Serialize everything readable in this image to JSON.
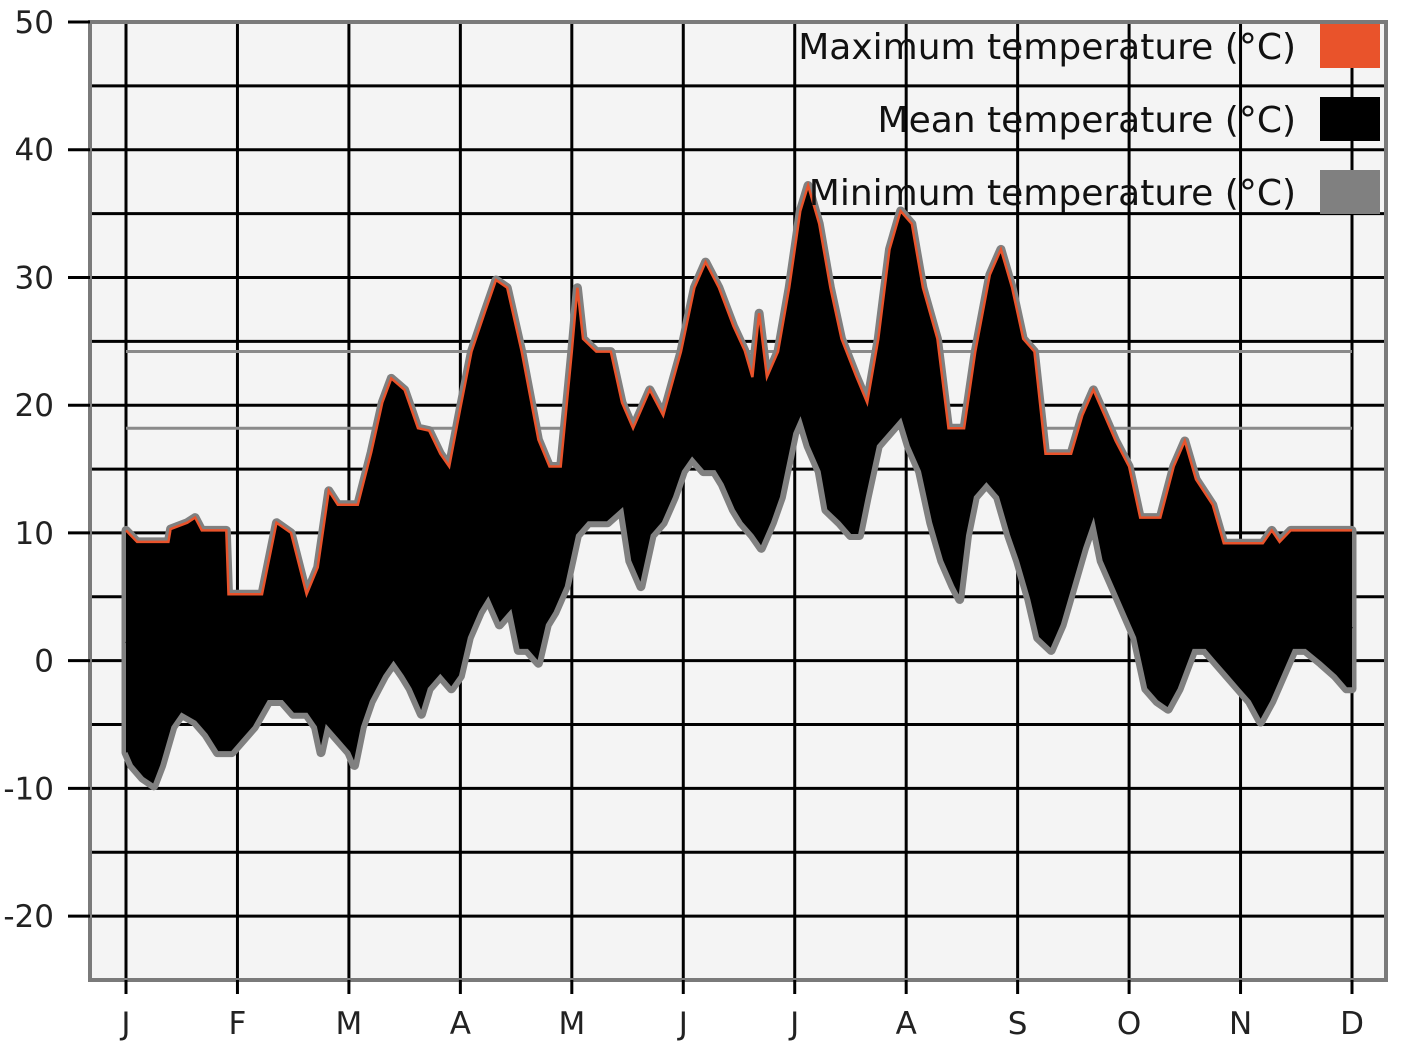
{
  "chart_data": {
    "type": "area",
    "title": "",
    "xlabel": "",
    "ylabel": "",
    "ylim": [
      -25,
      50
    ],
    "yticks": [
      50,
      40,
      30,
      20,
      10,
      0,
      -10,
      -20
    ],
    "xticks": [
      "J",
      "F",
      "M",
      "A",
      "M",
      "J",
      "J",
      "A",
      "S",
      "O",
      "N",
      "D"
    ],
    "xlim": [
      0,
      11
    ],
    "grid": true,
    "legend_position": "top-right",
    "reference_lines": [
      24.2,
      18.2
    ],
    "colors": {
      "background": "#f4f4f4",
      "grid": "#000000",
      "max": "#e9532b",
      "mean": "#000000",
      "min": "#808080",
      "reference": "#8a8a8a"
    },
    "series": [
      {
        "name": "Maximum temperature (°C)",
        "color": "#e9532b",
        "points": [
          [
            0.0,
            10.2
          ],
          [
            0.1,
            9.3
          ],
          [
            0.38,
            9.3
          ],
          [
            0.4,
            10.3
          ],
          [
            0.55,
            10.8
          ],
          [
            0.62,
            11.2
          ],
          [
            0.68,
            10.2
          ],
          [
            0.9,
            10.2
          ],
          [
            0.92,
            5.2
          ],
          [
            1.22,
            5.2
          ],
          [
            1.35,
            10.8
          ],
          [
            1.48,
            10.0
          ],
          [
            1.62,
            5.2
          ],
          [
            1.72,
            7.3
          ],
          [
            1.82,
            13.3
          ],
          [
            1.9,
            12.2
          ],
          [
            2.08,
            12.2
          ],
          [
            2.2,
            16.3
          ],
          [
            2.3,
            20.2
          ],
          [
            2.38,
            22.1
          ],
          [
            2.5,
            21.2
          ],
          [
            2.62,
            18.2
          ],
          [
            2.72,
            18.0
          ],
          [
            2.82,
            16.2
          ],
          [
            2.9,
            15.2
          ],
          [
            3.0,
            19.8
          ],
          [
            3.1,
            24.2
          ],
          [
            3.22,
            27.3
          ],
          [
            3.32,
            29.8
          ],
          [
            3.42,
            29.2
          ],
          [
            3.55,
            24.2
          ],
          [
            3.7,
            17.3
          ],
          [
            3.8,
            15.2
          ],
          [
            3.9,
            15.2
          ],
          [
            4.0,
            24.2
          ],
          [
            4.05,
            29.2
          ],
          [
            4.1,
            25.2
          ],
          [
            4.22,
            24.2
          ],
          [
            4.35,
            24.2
          ],
          [
            4.45,
            20.2
          ],
          [
            4.55,
            18.2
          ],
          [
            4.7,
            21.2
          ],
          [
            4.82,
            19.2
          ],
          [
            4.98,
            24.2
          ],
          [
            5.1,
            29.2
          ],
          [
            5.2,
            31.2
          ],
          [
            5.32,
            29.2
          ],
          [
            5.45,
            26.2
          ],
          [
            5.55,
            24.3
          ],
          [
            5.62,
            22.2
          ],
          [
            5.68,
            27.2
          ],
          [
            5.75,
            22.2
          ],
          [
            5.85,
            24.2
          ],
          [
            5.95,
            29.2
          ],
          [
            6.05,
            35.2
          ],
          [
            6.12,
            37.2
          ],
          [
            6.22,
            34.2
          ],
          [
            6.32,
            29.2
          ],
          [
            6.42,
            25.2
          ],
          [
            6.55,
            22.3
          ],
          [
            6.65,
            20.2
          ],
          [
            6.75,
            25.2
          ],
          [
            6.85,
            32.2
          ],
          [
            6.95,
            35.2
          ],
          [
            7.05,
            34.2
          ],
          [
            7.15,
            29.2
          ],
          [
            7.28,
            25.2
          ],
          [
            7.38,
            18.2
          ],
          [
            7.52,
            18.2
          ],
          [
            7.62,
            24.2
          ],
          [
            7.75,
            30.2
          ],
          [
            7.85,
            32.2
          ],
          [
            7.95,
            29.2
          ],
          [
            8.05,
            25.2
          ],
          [
            8.15,
            24.2
          ],
          [
            8.25,
            16.2
          ],
          [
            8.35,
            16.2
          ],
          [
            8.48,
            16.2
          ],
          [
            8.58,
            19.2
          ],
          [
            8.68,
            21.2
          ],
          [
            8.78,
            19.2
          ],
          [
            8.88,
            17.2
          ],
          [
            9.0,
            15.2
          ],
          [
            9.1,
            11.2
          ],
          [
            9.28,
            11.2
          ],
          [
            9.4,
            15.2
          ],
          [
            9.5,
            17.2
          ],
          [
            9.6,
            14.2
          ],
          [
            9.75,
            12.2
          ],
          [
            9.85,
            9.2
          ],
          [
            10.0,
            9.2
          ],
          [
            10.2,
            9.2
          ],
          [
            10.28,
            10.2
          ],
          [
            10.35,
            9.3
          ],
          [
            10.45,
            10.2
          ],
          [
            10.55,
            10.2
          ],
          [
            11.0,
            10.2
          ]
        ]
      },
      {
        "name": "Mean temperature (°C)",
        "color": "#000000",
        "points": [
          [
            0.0,
            1.5
          ],
          [
            0.3,
            0.5
          ],
          [
            0.6,
            3.5
          ],
          [
            0.9,
            1.0
          ],
          [
            1.2,
            -0.5
          ],
          [
            1.5,
            3.0
          ],
          [
            1.8,
            1.0
          ],
          [
            2.1,
            2.5
          ],
          [
            2.4,
            9.0
          ],
          [
            2.7,
            7.0
          ],
          [
            3.0,
            6.5
          ],
          [
            3.3,
            14.0
          ],
          [
            3.6,
            10.0
          ],
          [
            3.9,
            9.5
          ],
          [
            4.2,
            15.0
          ],
          [
            4.5,
            15.5
          ],
          [
            4.8,
            14.5
          ],
          [
            5.1,
            19.0
          ],
          [
            5.4,
            19.5
          ],
          [
            5.7,
            17.0
          ],
          [
            6.0,
            23.0
          ],
          [
            6.3,
            22.0
          ],
          [
            6.6,
            17.5
          ],
          [
            6.9,
            24.0
          ],
          [
            7.2,
            20.5
          ],
          [
            7.5,
            14.5
          ],
          [
            7.8,
            21.0
          ],
          [
            8.1,
            18.0
          ],
          [
            8.4,
            10.0
          ],
          [
            8.7,
            13.5
          ],
          [
            9.0,
            9.0
          ],
          [
            9.3,
            6.5
          ],
          [
            9.6,
            6.0
          ],
          [
            9.9,
            4.5
          ],
          [
            10.2,
            3.5
          ],
          [
            10.5,
            4.0
          ],
          [
            10.8,
            3.5
          ],
          [
            11.0,
            2.5
          ]
        ]
      },
      {
        "name": "Minimum temperature (°C)",
        "color": "#808080",
        "points": [
          [
            0.0,
            -7.2
          ],
          [
            0.05,
            -8.2
          ],
          [
            0.15,
            -9.2
          ],
          [
            0.25,
            -9.8
          ],
          [
            0.32,
            -8.2
          ],
          [
            0.42,
            -5.2
          ],
          [
            0.5,
            -4.2
          ],
          [
            0.62,
            -4.8
          ],
          [
            0.72,
            -5.8
          ],
          [
            0.82,
            -7.2
          ],
          [
            0.95,
            -7.2
          ],
          [
            1.05,
            -6.2
          ],
          [
            1.15,
            -5.2
          ],
          [
            1.28,
            -3.2
          ],
          [
            1.4,
            -3.2
          ],
          [
            1.5,
            -4.2
          ],
          [
            1.62,
            -4.2
          ],
          [
            1.7,
            -5.2
          ],
          [
            1.75,
            -7.2
          ],
          [
            1.8,
            -5.2
          ],
          [
            1.9,
            -6.2
          ],
          [
            2.0,
            -7.2
          ],
          [
            2.05,
            -8.2
          ],
          [
            2.12,
            -5.2
          ],
          [
            2.2,
            -3.2
          ],
          [
            2.32,
            -1.2
          ],
          [
            2.4,
            -0.2
          ],
          [
            2.48,
            -1.2
          ],
          [
            2.55,
            -2.2
          ],
          [
            2.65,
            -4.2
          ],
          [
            2.72,
            -2.2
          ],
          [
            2.82,
            -1.2
          ],
          [
            2.92,
            -2.2
          ],
          [
            3.0,
            -1.2
          ],
          [
            3.08,
            1.8
          ],
          [
            3.18,
            3.8
          ],
          [
            3.25,
            4.8
          ],
          [
            3.35,
            2.8
          ],
          [
            3.45,
            3.8
          ],
          [
            3.52,
            0.8
          ],
          [
            3.6,
            0.8
          ],
          [
            3.7,
            -0.2
          ],
          [
            3.78,
            2.8
          ],
          [
            3.85,
            3.8
          ],
          [
            3.95,
            5.8
          ],
          [
            4.05,
            9.8
          ],
          [
            4.15,
            10.8
          ],
          [
            4.32,
            10.8
          ],
          [
            4.45,
            11.8
          ],
          [
            4.52,
            7.8
          ],
          [
            4.62,
            5.8
          ],
          [
            4.72,
            9.8
          ],
          [
            4.82,
            10.8
          ],
          [
            4.92,
            12.8
          ],
          [
            5.0,
            14.8
          ],
          [
            5.08,
            15.8
          ],
          [
            5.18,
            14.8
          ],
          [
            5.28,
            14.8
          ],
          [
            5.35,
            13.8
          ],
          [
            5.45,
            11.8
          ],
          [
            5.52,
            10.8
          ],
          [
            5.62,
            9.8
          ],
          [
            5.7,
            8.8
          ],
          [
            5.8,
            10.8
          ],
          [
            5.88,
            12.8
          ],
          [
            6.0,
            17.8
          ],
          [
            6.05,
            18.8
          ],
          [
            6.12,
            16.8
          ],
          [
            6.22,
            14.8
          ],
          [
            6.28,
            11.8
          ],
          [
            6.4,
            10.8
          ],
          [
            6.5,
            9.8
          ],
          [
            6.58,
            9.8
          ],
          [
            6.65,
            12.8
          ],
          [
            6.75,
            16.8
          ],
          [
            6.85,
            17.8
          ],
          [
            6.95,
            18.8
          ],
          [
            7.02,
            16.8
          ],
          [
            7.12,
            14.8
          ],
          [
            7.22,
            10.8
          ],
          [
            7.32,
            7.8
          ],
          [
            7.42,
            5.8
          ],
          [
            7.48,
            4.8
          ],
          [
            7.55,
            9.8
          ],
          [
            7.62,
            12.8
          ],
          [
            7.72,
            13.8
          ],
          [
            7.82,
            12.8
          ],
          [
            7.92,
            9.8
          ],
          [
            8.0,
            7.8
          ],
          [
            8.1,
            4.8
          ],
          [
            8.18,
            1.8
          ],
          [
            8.3,
            0.8
          ],
          [
            8.4,
            2.8
          ],
          [
            8.5,
            5.8
          ],
          [
            8.6,
            8.8
          ],
          [
            8.68,
            10.8
          ],
          [
            8.75,
            7.8
          ],
          [
            8.85,
            5.8
          ],
          [
            8.95,
            3.8
          ],
          [
            9.05,
            1.8
          ],
          [
            9.15,
            -2.2
          ],
          [
            9.25,
            -3.2
          ],
          [
            9.35,
            -3.8
          ],
          [
            9.45,
            -2.2
          ],
          [
            9.58,
            0.8
          ],
          [
            9.68,
            0.8
          ],
          [
            9.78,
            -0.2
          ],
          [
            9.88,
            -1.2
          ],
          [
            9.98,
            -2.2
          ],
          [
            10.08,
            -3.2
          ],
          [
            10.18,
            -4.8
          ],
          [
            10.28,
            -3.2
          ],
          [
            10.38,
            -1.2
          ],
          [
            10.48,
            0.8
          ],
          [
            10.58,
            0.8
          ],
          [
            10.72,
            -0.2
          ],
          [
            10.85,
            -1.2
          ],
          [
            10.95,
            -2.2
          ],
          [
            11.0,
            -2.2
          ]
        ]
      }
    ]
  }
}
